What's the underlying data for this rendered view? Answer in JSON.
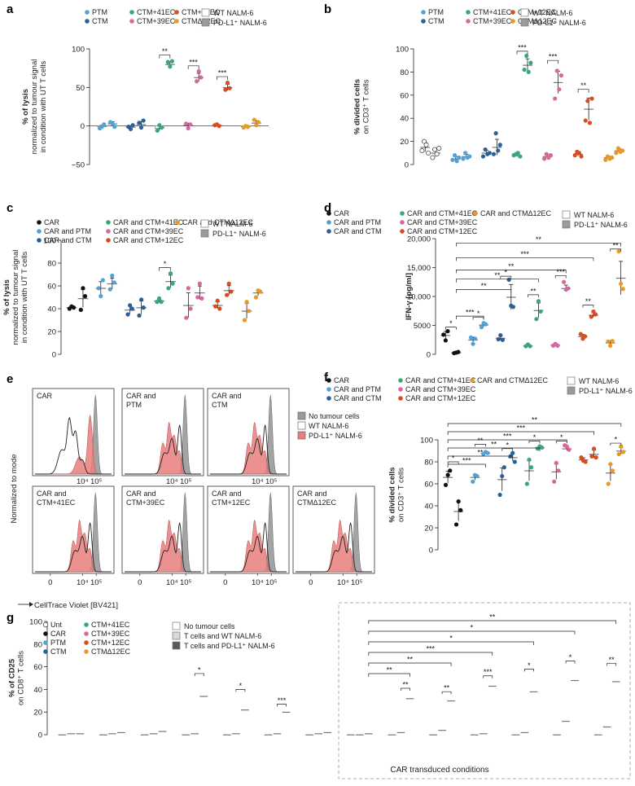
{
  "colors": {
    "PTM": "#4fa3d9",
    "CTM": "#2c5f96",
    "CTM+41EC": "#3aa77a",
    "CTM+39EC": "#d8679f",
    "CTM+12EC": "#d94c1f",
    "CTMΔ12EC": "#e89a28",
    "CAR": "#111111",
    "Unt": "#ffffff",
    "gray": "#9a9a9a",
    "dark": "#5a5a5a",
    "flowpink": "#e87f7c"
  },
  "chart_data": [
    {
      "id": "a",
      "type": "bar",
      "panel_label": "a",
      "ylabel_lines": [
        "% of lysis",
        "normalized to tumour signal",
        "in condition with UT T cells"
      ],
      "ylim": [
        -50,
        100
      ],
      "yticks": [
        -50,
        0,
        50,
        100
      ],
      "legend_groups": [
        "PTM",
        "CTM",
        "CTM+41EC",
        "CTM+39EC",
        "CTM+12EC",
        "CTMΔ12EC"
      ],
      "legend_conditions": [
        "WT NALM-6",
        "PD-L1⁺ NALM-6"
      ],
      "groups": [
        "PTM",
        "CTM",
        "CTM+41EC",
        "CTM+39EC",
        "CTM+12EC",
        "CTMΔ12EC"
      ],
      "series": [
        {
          "name": "WT NALM-6",
          "values": [
            -1,
            -2,
            -3,
            1,
            1,
            -1
          ]
        },
        {
          "name": "PD-L1⁺ NALM-6",
          "values": [
            3,
            2,
            80,
            63,
            50,
            4
          ]
        }
      ],
      "points": [
        [
          [
            -3,
            -1,
            2
          ],
          [
            5,
            3,
            -1
          ]
        ],
        [
          [
            -1,
            -4,
            1
          ],
          [
            4,
            -2,
            7
          ]
        ],
        [
          [
            -6,
            1,
            -2
          ],
          [
            83,
            77,
            84
          ]
        ],
        [
          [
            3,
            -3,
            2
          ],
          [
            58,
            71,
            63
          ]
        ],
        [
          [
            1,
            2,
            0
          ],
          [
            47,
            56,
            49
          ]
        ],
        [
          [
            -2,
            0,
            -1
          ],
          [
            8,
            1,
            5
          ]
        ]
      ],
      "sig": [
        {
          "group": 2,
          "label": "**"
        },
        {
          "group": 3,
          "label": "***"
        },
        {
          "group": 4,
          "label": "***"
        }
      ]
    },
    {
      "id": "b",
      "type": "bar",
      "panel_label": "b",
      "ylabel_lines": [
        "% divided cells",
        "on CD3⁺ T cells"
      ],
      "ylim": [
        0,
        100
      ],
      "yticks": [
        0,
        20,
        40,
        60,
        80,
        100
      ],
      "legend_groups": [
        "PTM",
        "CTM",
        "CTM+41EC",
        "CTM+39EC",
        "CTM+12EC",
        "CTMΔ12EC"
      ],
      "legend_conditions": [
        "WT NALM-6",
        "PD-L1⁺ NALM-6"
      ],
      "groups": [
        "Unt",
        "PTM",
        "CTM",
        "CTM+41EC",
        "CTM+39EC",
        "CTM+12EC",
        "CTMΔ12EC"
      ],
      "series": [
        {
          "name": "WT NALM-6",
          "values": [
            15,
            5,
            10,
            8,
            7,
            9,
            6
          ]
        },
        {
          "name": "PD-L1⁺ NALM-6",
          "values": [
            10,
            7,
            15,
            86,
            71,
            48,
            12
          ]
        }
      ],
      "points": [
        [
          [
            12,
            20,
            17,
            10
          ],
          [
            6,
            13,
            9,
            14
          ]
        ],
        [
          [
            4,
            8,
            3,
            6
          ],
          [
            5,
            10,
            6,
            7
          ]
        ],
        [
          [
            7,
            13,
            9,
            10
          ],
          [
            9,
            27,
            12,
            17
          ]
        ],
        [
          [
            8,
            9,
            10,
            7
          ],
          [
            82,
            94,
            80,
            88
          ]
        ],
        [
          [
            5,
            9,
            6,
            8
          ],
          [
            57,
            81,
            65,
            77
          ]
        ],
        [
          [
            8,
            11,
            10,
            7
          ],
          [
            38,
            55,
            36,
            57
          ]
        ],
        [
          [
            4,
            7,
            5,
            6
          ],
          [
            10,
            14,
            11,
            12
          ]
        ]
      ],
      "sig": [
        {
          "group": 3,
          "label": "***"
        },
        {
          "group": 4,
          "label": "***"
        },
        {
          "group": 5,
          "label": "**"
        }
      ]
    },
    {
      "id": "c",
      "type": "bar",
      "panel_label": "c",
      "ylabel_lines": [
        "% of lysis",
        "normalized to tumour signal",
        "in condition with UT T cells"
      ],
      "ylim": [
        0,
        100
      ],
      "yticks": [
        0,
        20,
        40,
        60,
        80,
        100
      ],
      "legend_groups": [
        "CAR",
        "CAR and PTM",
        "CAR and CTM",
        "CAR and CTM+41EC",
        "CAR and CTM+39EC",
        "CAR and CTM+12EC",
        "CAR and CTMΔ12EC"
      ],
      "legend_conditions": [
        "WT NALM-6",
        "PD-L1⁺ NALM-6"
      ],
      "groups": [
        "CAR",
        "PTM",
        "CTM",
        "CTM+41EC",
        "CTM+39EC",
        "CTM+12EC",
        "CTMΔ12EC"
      ],
      "series": [
        {
          "name": "WT NALM-6",
          "values": [
            41,
            58,
            39,
            47,
            43,
            43,
            38
          ]
        },
        {
          "name": "PD-L1⁺ NALM-6",
          "values": [
            49,
            62,
            41,
            64,
            54,
            56,
            54
          ]
        }
      ],
      "points": [
        [
          [
            40,
            42,
            41
          ],
          [
            39,
            58,
            51
          ]
        ],
        [
          [
            58,
            51,
            65
          ],
          [
            57,
            69,
            63
          ]
        ],
        [
          [
            35,
            43,
            40
          ],
          [
            34,
            48,
            41
          ]
        ],
        [
          [
            46,
            49,
            46
          ],
          [
            58,
            71,
            62
          ]
        ],
        [
          [
            32,
            58,
            40
          ],
          [
            50,
            62,
            49
          ]
        ],
        [
          [
            42,
            47,
            40
          ],
          [
            52,
            62,
            55
          ]
        ],
        [
          [
            30,
            46,
            38
          ],
          [
            50,
            56,
            55
          ]
        ]
      ],
      "sig": [
        {
          "group": 3,
          "label": "*"
        }
      ]
    },
    {
      "id": "d",
      "type": "bar",
      "panel_label": "d",
      "ylabel_lines": [
        "IFN-γ [pg/ml]"
      ],
      "ylim": [
        0,
        20000
      ],
      "yticks": [
        0,
        5000,
        10000,
        15000,
        20000
      ],
      "ytick_labels": [
        "0",
        "5000",
        "10,000",
        "15,000",
        "20,000"
      ],
      "legend_groups": [
        "CAR",
        "CAR and PTM",
        "CAR and CTM",
        "CAR and CTM+41EC",
        "CAR and CTM+39EC",
        "CAR and CTM+12EC",
        "CAR and CTMΔ12EC"
      ],
      "legend_conditions": [
        "WT NALM-6",
        "PD-L1⁺ NALM-6"
      ],
      "groups": [
        "CAR",
        "PTM",
        "CTM",
        "CTM+41EC",
        "CTM+39EC",
        "CTM+12EC",
        "CTMΔ12EC"
      ],
      "series": [
        {
          "name": "WT NALM-6",
          "values": [
            3300,
            2500,
            2800,
            1500,
            1600,
            3100,
            2000
          ]
        },
        {
          "name": "PD-L1⁺ NALM-6",
          "values": [
            300,
            5100,
            9900,
            7600,
            11400,
            6800,
            13200
          ]
        }
      ],
      "points": [
        [
          [
            3400,
            2400,
            4000
          ],
          [
            200,
            300,
            400
          ]
        ],
        [
          [
            2900,
            1800,
            2700
          ],
          [
            4700,
            5400,
            5200
          ]
        ],
        [
          [
            2600,
            3300,
            2500
          ],
          [
            12900,
            8400,
            8200
          ]
        ],
        [
          [
            1400,
            1700,
            1400
          ],
          [
            6100,
            9200,
            7400
          ]
        ],
        [
          [
            1500,
            1800,
            1500
          ],
          [
            12500,
            11200,
            11400
          ]
        ],
        [
          [
            3500,
            2700,
            3100
          ],
          [
            6500,
            7400,
            6900
          ]
        ],
        [
          [
            2200,
            1500,
            2300
          ],
          [
            17800,
            12200,
            11300
          ]
        ]
      ],
      "pair_sig": [
        {
          "group": 0,
          "label": "*"
        },
        {
          "group": 1,
          "label": "*"
        },
        {
          "group": 2,
          "label": "*"
        },
        {
          "group": 3,
          "label": "**"
        },
        {
          "group": 4,
          "label": "***"
        },
        {
          "group": 5,
          "label": "**"
        },
        {
          "group": 6,
          "label": "**"
        }
      ],
      "car_sig": [
        {
          "group": 1,
          "label": "***"
        },
        {
          "group": 2,
          "label": "**"
        },
        {
          "group": 3,
          "label": "**"
        },
        {
          "group": 4,
          "label": "**"
        },
        {
          "group": 5,
          "label": "***"
        },
        {
          "group": 6,
          "label": "**"
        }
      ]
    },
    {
      "id": "f",
      "type": "bar",
      "panel_label": "f",
      "ylabel_lines": [
        "% divided cells",
        "on CD3⁺ T cells"
      ],
      "ylim": [
        0,
        100
      ],
      "yticks": [
        0,
        20,
        40,
        60,
        80,
        100
      ],
      "legend_groups": [
        "CAR",
        "CAR and PTM",
        "CAR and CTM",
        "CAR and CTM+41EC",
        "CAR and CTM+39EC",
        "CAR and CTM+12EC",
        "CAR and CTMΔ12EC"
      ],
      "legend_conditions": [
        "WT NALM-6",
        "PD-L1⁺ NALM-6"
      ],
      "groups": [
        "CAR",
        "PTM",
        "CTM",
        "CTM+41EC",
        "CTM+39EC",
        "CTM+12EC",
        "CTMΔ12EC"
      ],
      "series": [
        {
          "name": "WT NALM-6",
          "values": [
            66,
            66,
            64,
            72,
            71,
            82,
            70
          ]
        },
        {
          "name": "PD-L1⁺ NALM-6",
          "values": [
            35,
            88,
            84,
            93,
            92,
            87,
            90
          ]
        }
      ],
      "points": [
        [
          [
            59,
            68,
            72
          ],
          [
            23,
            44,
            36
          ]
        ],
        [
          [
            62,
            68,
            67
          ],
          [
            87,
            89,
            88
          ]
        ],
        [
          [
            50,
            67,
            75
          ],
          [
            85,
            88,
            80
          ]
        ],
        [
          [
            60,
            82,
            75
          ],
          [
            92,
            94,
            93
          ]
        ],
        [
          [
            62,
            79,
            72
          ],
          [
            95,
            94,
            91
          ]
        ],
        [
          [
            84,
            81,
            80
          ],
          [
            85,
            92,
            84
          ]
        ],
        [
          [
            60,
            78,
            72
          ],
          [
            87,
            94,
            89
          ]
        ]
      ],
      "pair_sig": [
        {
          "group": 0,
          "label": "*"
        },
        {
          "group": 1,
          "label": "**"
        },
        {
          "group": 2,
          "label": "*"
        },
        {
          "group": 3,
          "label": "*"
        },
        {
          "group": 4,
          "label": "*"
        },
        {
          "group": 6,
          "label": "*"
        }
      ],
      "car_sig": [
        {
          "group": 1,
          "label": "***"
        },
        {
          "group": 2,
          "label": "**"
        },
        {
          "group": 3,
          "label": "**"
        },
        {
          "group": 4,
          "label": "***"
        },
        {
          "group": 5,
          "label": "***"
        },
        {
          "group": 6,
          "label": "**"
        }
      ]
    },
    {
      "id": "g",
      "type": "bar",
      "panel_label": "g",
      "ylabel_lines": [
        "% of CD25",
        "on CD8⁺ T cells"
      ],
      "ylim": [
        0,
        100
      ],
      "yticks": [
        0,
        20,
        40,
        60,
        80,
        100
      ],
      "legend_groups": [
        "Unt",
        "CAR",
        "PTM",
        "CTM",
        "CTM+41EC",
        "CTM+39EC",
        "CTM+12EC",
        "CTMΔ12EC"
      ],
      "legend_conditions": [
        "No tumour cells",
        "T cells and WT NALM-6",
        "T cells and PD-L1⁺ NALM-6"
      ],
      "groups": [
        "Unt",
        "PTM",
        "CTM",
        "CTM+41EC",
        "CTM+39EC",
        "CTM+12EC",
        "CTMΔ12EC",
        "CAR",
        "CAR+PTM",
        "CAR+CTM",
        "CAR+CTM+41EC",
        "CAR+CTM+39EC",
        "CAR+CTM+12EC",
        "CAR+CTMΔ12EC"
      ],
      "group_colors": [
        "Unt",
        "PTM",
        "CTM",
        "CTM+41EC",
        "CTM+39EC",
        "CTM+12EC",
        "CTMΔ12EC",
        "CAR",
        "PTM",
        "CTM",
        "CTM+41EC",
        "CTM+39EC",
        "CTM+12EC",
        "CTMΔ12EC"
      ],
      "series": [
        {
          "name": "No tumour cells",
          "values": [
            0,
            0,
            0,
            0,
            0,
            0,
            0,
            0,
            0,
            0,
            0,
            0,
            0,
            0
          ]
        },
        {
          "name": "T cells and WT NALM-6",
          "values": [
            1,
            1,
            1,
            1,
            1,
            1,
            1,
            0,
            2,
            4,
            1,
            2,
            12,
            7
          ]
        },
        {
          "name": "T cells and PD-L1⁺ NALM-6",
          "values": [
            1,
            2,
            3,
            34,
            22,
            20,
            2,
            1,
            32,
            30,
            43,
            38,
            48,
            47
          ]
        }
      ],
      "sig": [
        {
          "group": 3,
          "label": "*"
        },
        {
          "group": 4,
          "label": "*"
        },
        {
          "group": 5,
          "label": "***"
        },
        {
          "group": 8,
          "label": "**"
        },
        {
          "group": 9,
          "label": "**"
        },
        {
          "group": 10,
          "label": "***"
        },
        {
          "group": 11,
          "label": "*"
        },
        {
          "group": 12,
          "label": "*"
        },
        {
          "group": 13,
          "label": "**"
        }
      ],
      "car_sig": [
        {
          "group": 8,
          "label": "**"
        },
        {
          "group": 9,
          "label": "**"
        },
        {
          "group": 10,
          "label": "***"
        },
        {
          "group": 11,
          "label": "*"
        },
        {
          "group": 12,
          "label": "*"
        },
        {
          "group": 13,
          "label": "**"
        }
      ],
      "region_label": "CAR transduced conditions"
    }
  ],
  "flow": {
    "panel_label": "e",
    "ylabel": "Normalized to mode",
    "xlabel": "CellTrace Violet [BV421]",
    "xticks": [
      "0",
      "10⁴",
      "10⁵"
    ],
    "panels": [
      "CAR",
      "CAR and\nPTM",
      "CAR and\nCTM",
      "CAR and\nCTM+41EC",
      "CAR and\nCTM+39EC",
      "CAR and\nCTM+12EC",
      "CAR and\nCTMΔ12EC"
    ],
    "legend": [
      "No tumour cells",
      "WT NALM-6",
      "PD-L1⁺ NALM-6"
    ]
  }
}
